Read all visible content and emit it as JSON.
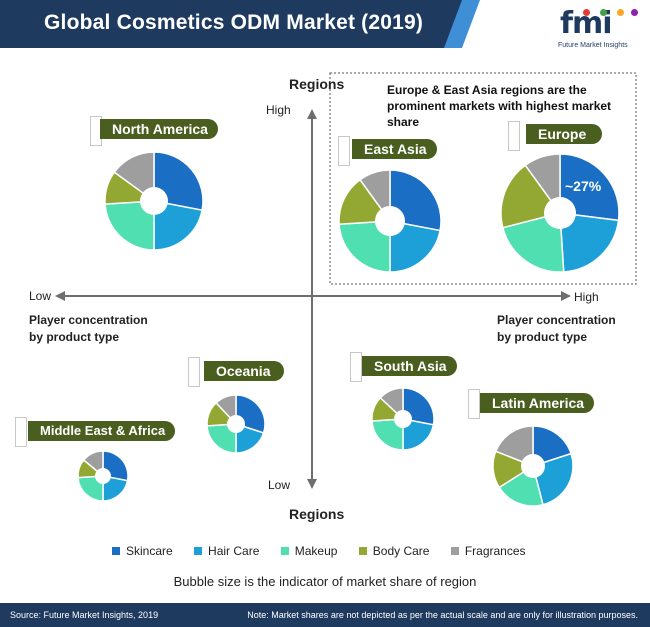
{
  "header": {
    "title": "Global Cosmetics ODM Market (2019)",
    "logo_letters": "fmi",
    "logo_tagline": "Future Market Insights"
  },
  "axes": {
    "y_label_top": "Regions",
    "y_label_bottom": "Regions",
    "y_high": "High",
    "y_low": "Low",
    "x_low": "Low",
    "x_high": "High",
    "x_label_left": [
      "Player concentration",
      "by product type"
    ],
    "x_label_right": [
      "Player concentration",
      "by product type"
    ]
  },
  "callout": "Europe & East Asia regions are the prominent markets with highest market share",
  "chart_data": {
    "type": "pie",
    "title": "Global Cosmetics ODM Market (2019)",
    "categories": [
      "Skincare",
      "Hair Care",
      "Makeup",
      "Body Care",
      "Fragrances"
    ],
    "colors": [
      "#1a6fc4",
      "#1d9fd8",
      "#4fdfb0",
      "#93a832",
      "#9e9e9e"
    ],
    "regions": [
      {
        "name": "North America",
        "values": [
          28,
          22,
          24,
          11,
          15
        ]
      },
      {
        "name": "East Asia",
        "values": [
          28,
          22,
          24,
          16,
          10
        ]
      },
      {
        "name": "Europe",
        "values": [
          27,
          22,
          22,
          19,
          10
        ]
      },
      {
        "name": "Oceania",
        "values": [
          30,
          20,
          24,
          14,
          12
        ]
      },
      {
        "name": "South Asia",
        "values": [
          28,
          22,
          24,
          13,
          13
        ]
      },
      {
        "name": "Middle East & Africa",
        "values": [
          28,
          22,
          24,
          12,
          14
        ]
      },
      {
        "name": "Latin America",
        "values": [
          20,
          26,
          20,
          15,
          19
        ]
      }
    ],
    "annotation": "~27%"
  },
  "legend_note": "Bubble size is the indicator of market share of region",
  "footer": {
    "source": "Source: Future Market Insights, 2019",
    "note": "Note: Market shares are not depicted as per the actual scale and are only for illustration purposes."
  }
}
